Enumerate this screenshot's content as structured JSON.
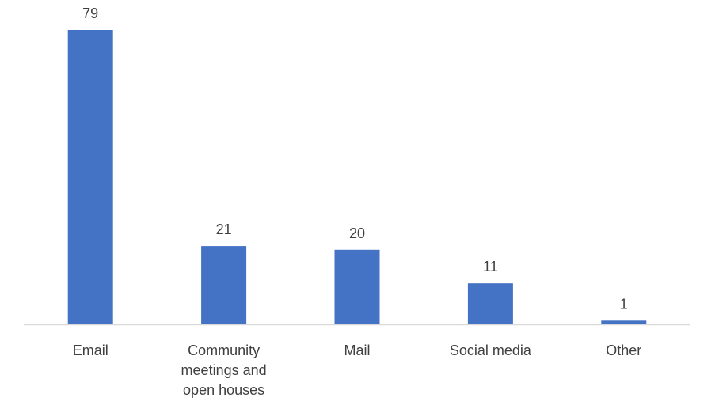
{
  "chart_data": {
    "type": "bar",
    "categories": [
      "Email",
      "Community meetings and open houses",
      "Mail",
      "Social media",
      "Other"
    ],
    "category_label_lines": [
      [
        "Email"
      ],
      [
        "Community",
        "meetings and",
        "open houses"
      ],
      [
        "Mail"
      ],
      [
        "Social media"
      ],
      [
        "Other"
      ]
    ],
    "values": [
      79,
      21,
      20,
      11,
      1
    ],
    "data_labels": [
      "79",
      "21",
      "20",
      "11",
      "1"
    ],
    "ylim": [
      0,
      80
    ],
    "grid": false,
    "legend": "none",
    "bar_color": "#4472C4",
    "axis_color": "#D9D9D9",
    "text_color": "#404040"
  }
}
